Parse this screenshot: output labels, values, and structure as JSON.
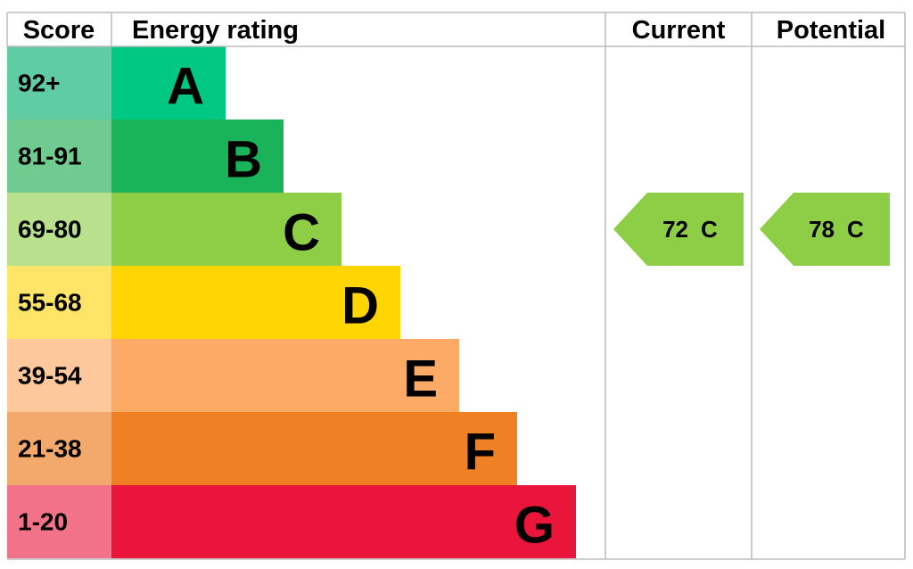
{
  "header": {
    "score": "Score",
    "rating": "Energy rating",
    "current": "Current",
    "potential": "Potential"
  },
  "bands": [
    {
      "score": "92+",
      "letter": "A",
      "color": "#00c781",
      "score_color": "#5fcca3"
    },
    {
      "score": "81-91",
      "letter": "B",
      "color": "#19b459",
      "score_color": "#6fcb8f"
    },
    {
      "score": "69-80",
      "letter": "C",
      "color": "#8dce46",
      "score_color": "#b9e08c"
    },
    {
      "score": "55-68",
      "letter": "D",
      "color": "#ffd500",
      "score_color": "#ffe567"
    },
    {
      "score": "39-54",
      "letter": "E",
      "color": "#fcaa65",
      "score_color": "#fdc89c"
    },
    {
      "score": "21-38",
      "letter": "F",
      "color": "#ef8023",
      "score_color": "#f4a96c"
    },
    {
      "score": "1-20",
      "letter": "G",
      "color": "#e9153b",
      "score_color": "#f27389"
    }
  ],
  "current": {
    "score": 72,
    "letter": "C"
  },
  "potential": {
    "score": 78,
    "letter": "C"
  }
}
